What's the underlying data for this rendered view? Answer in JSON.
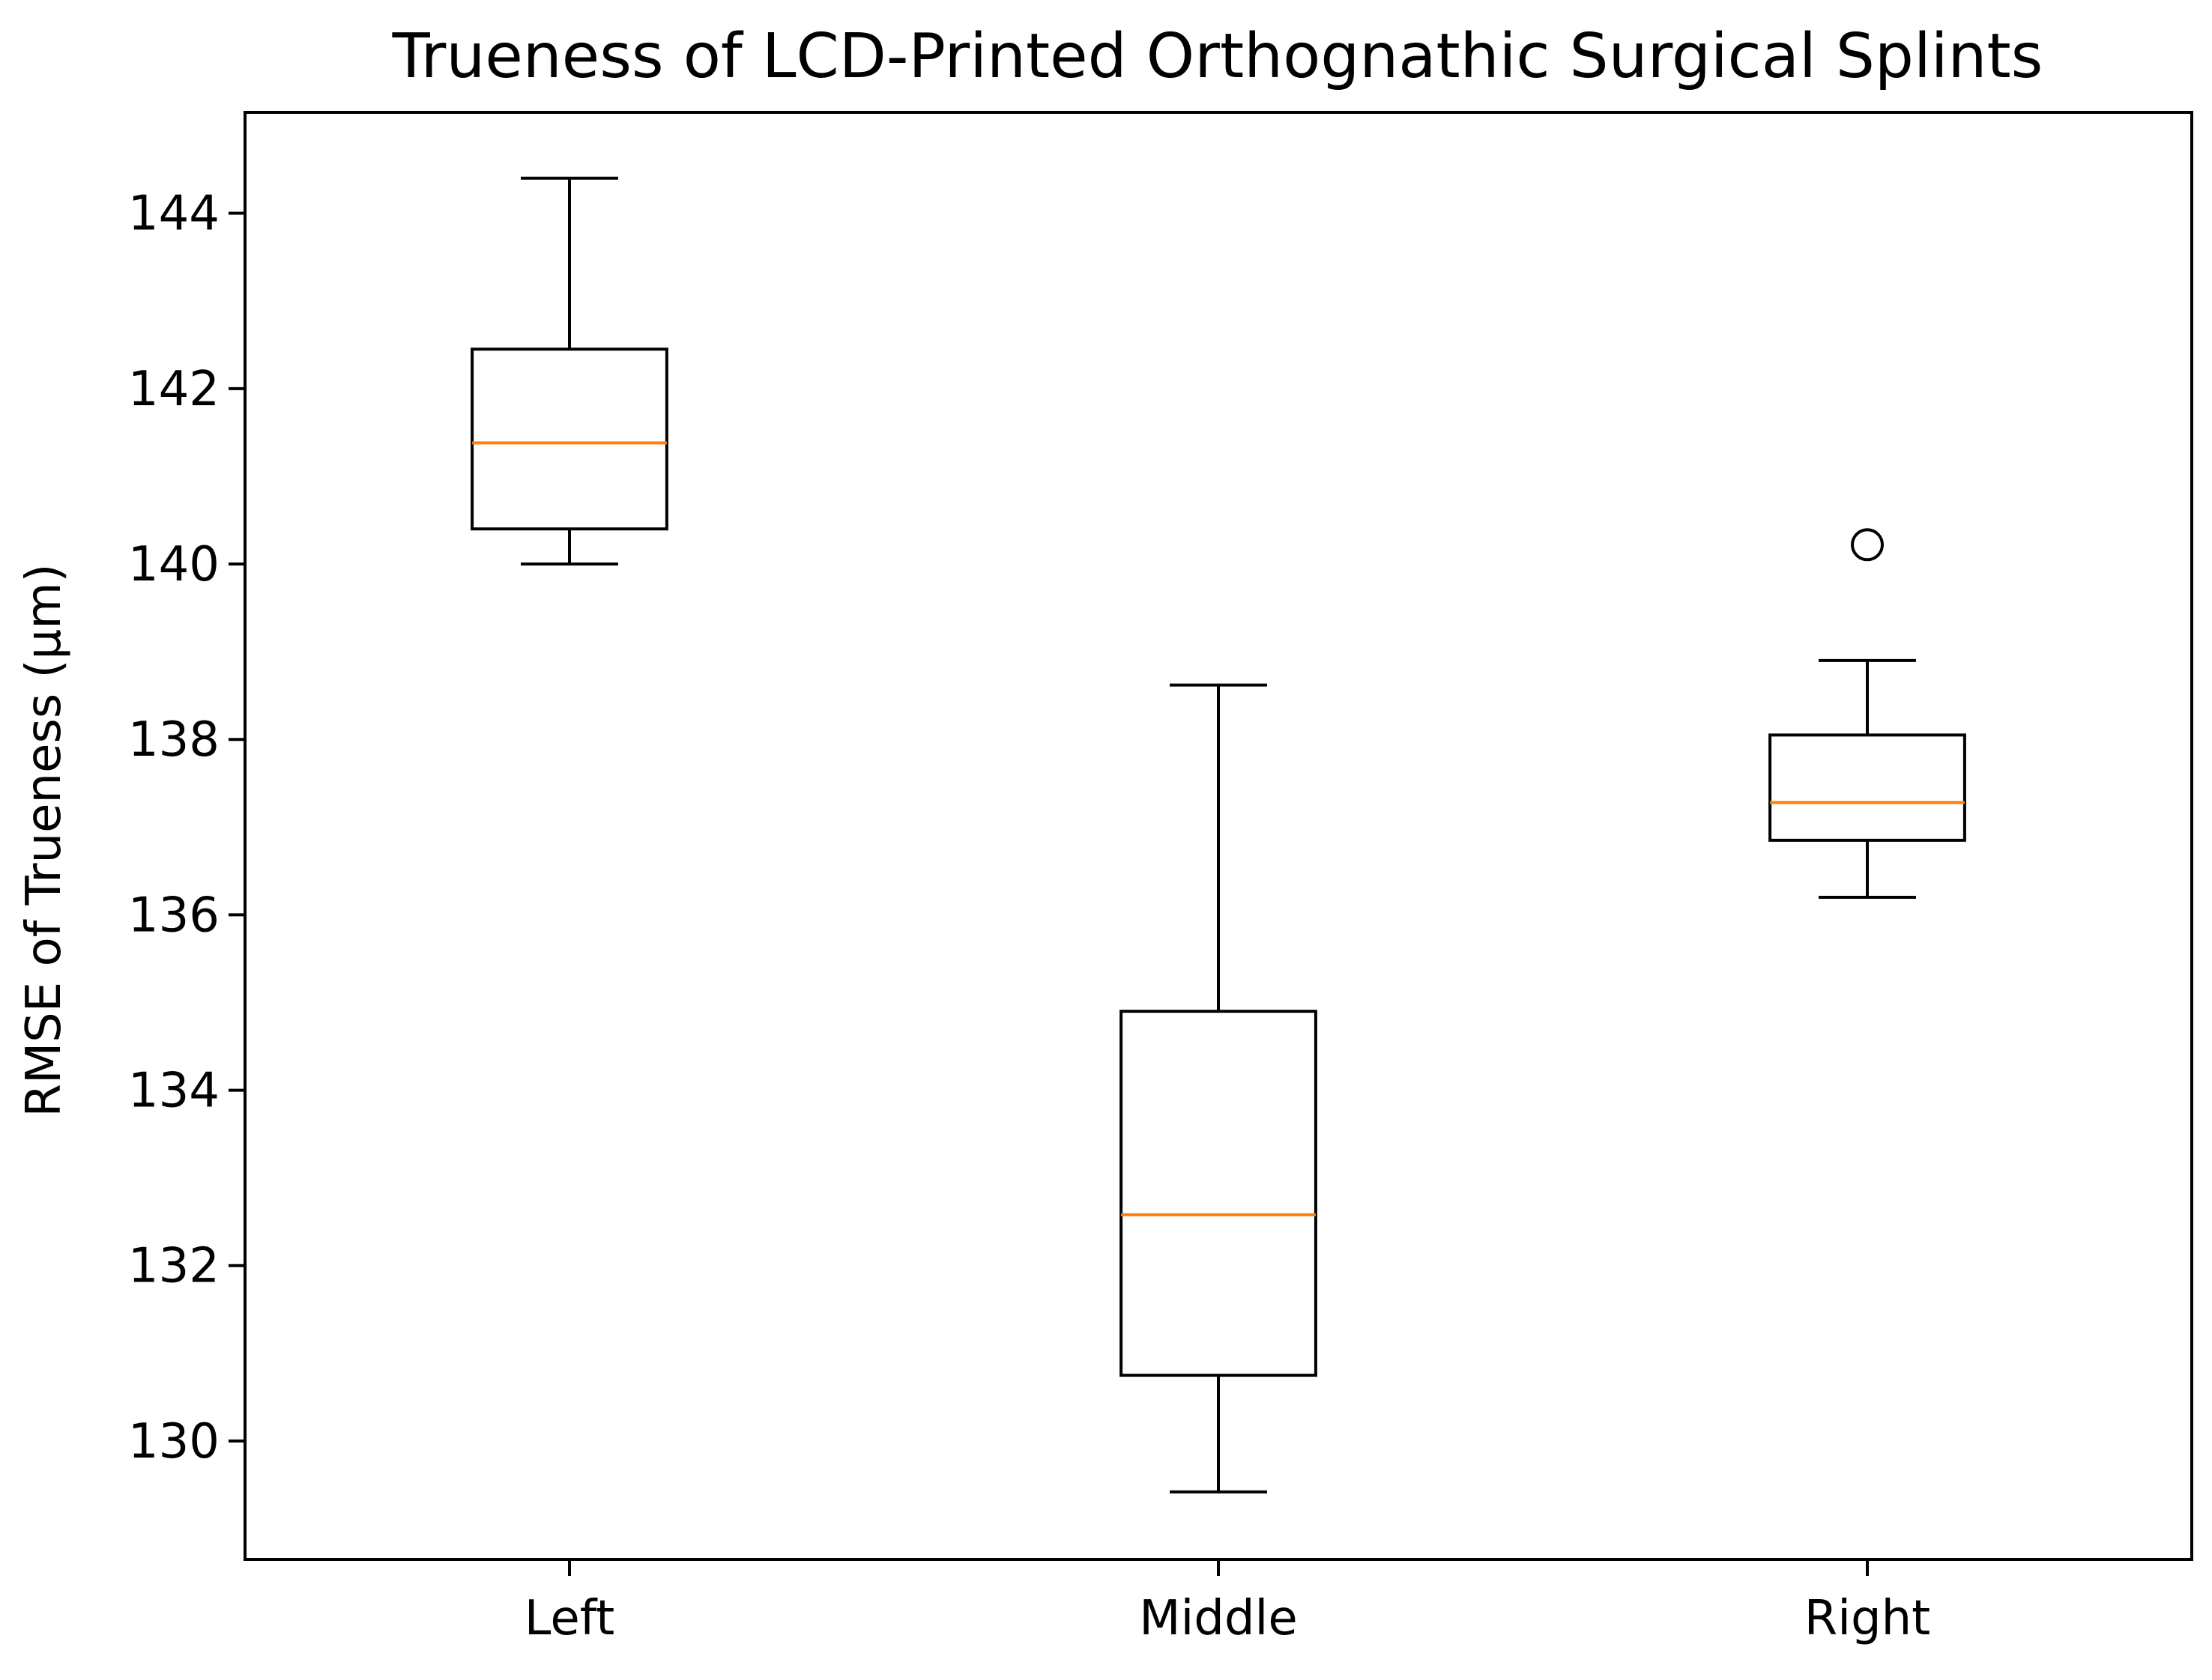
{
  "chart_data": {
    "type": "boxplot",
    "title": "Trueness of LCD-Printed Orthognathic Surgical Splints",
    "xlabel": "",
    "ylabel": "RMSE of Trueness (µm)",
    "ylim": [
      128.65,
      145.15
    ],
    "yticks": [
      130,
      132,
      134,
      136,
      138,
      140,
      142,
      144
    ],
    "categories": [
      "Left",
      "Middle",
      "Right"
    ],
    "boxes": [
      {
        "label": "Left",
        "whisker_low": 140.0,
        "q1": 140.4,
        "median": 141.38,
        "q3": 142.45,
        "whisker_high": 144.4,
        "outliers": []
      },
      {
        "label": "Middle",
        "whisker_low": 129.42,
        "q1": 130.75,
        "median": 132.58,
        "q3": 134.9,
        "whisker_high": 138.62,
        "outliers": []
      },
      {
        "label": "Right",
        "whisker_low": 136.2,
        "q1": 136.85,
        "median": 137.28,
        "q3": 138.05,
        "whisker_high": 138.9,
        "outliers": [
          140.22
        ]
      }
    ],
    "grid": false,
    "colors": {
      "box": "#000000",
      "median": "#ff7f0e",
      "outlier": "#000000"
    }
  }
}
